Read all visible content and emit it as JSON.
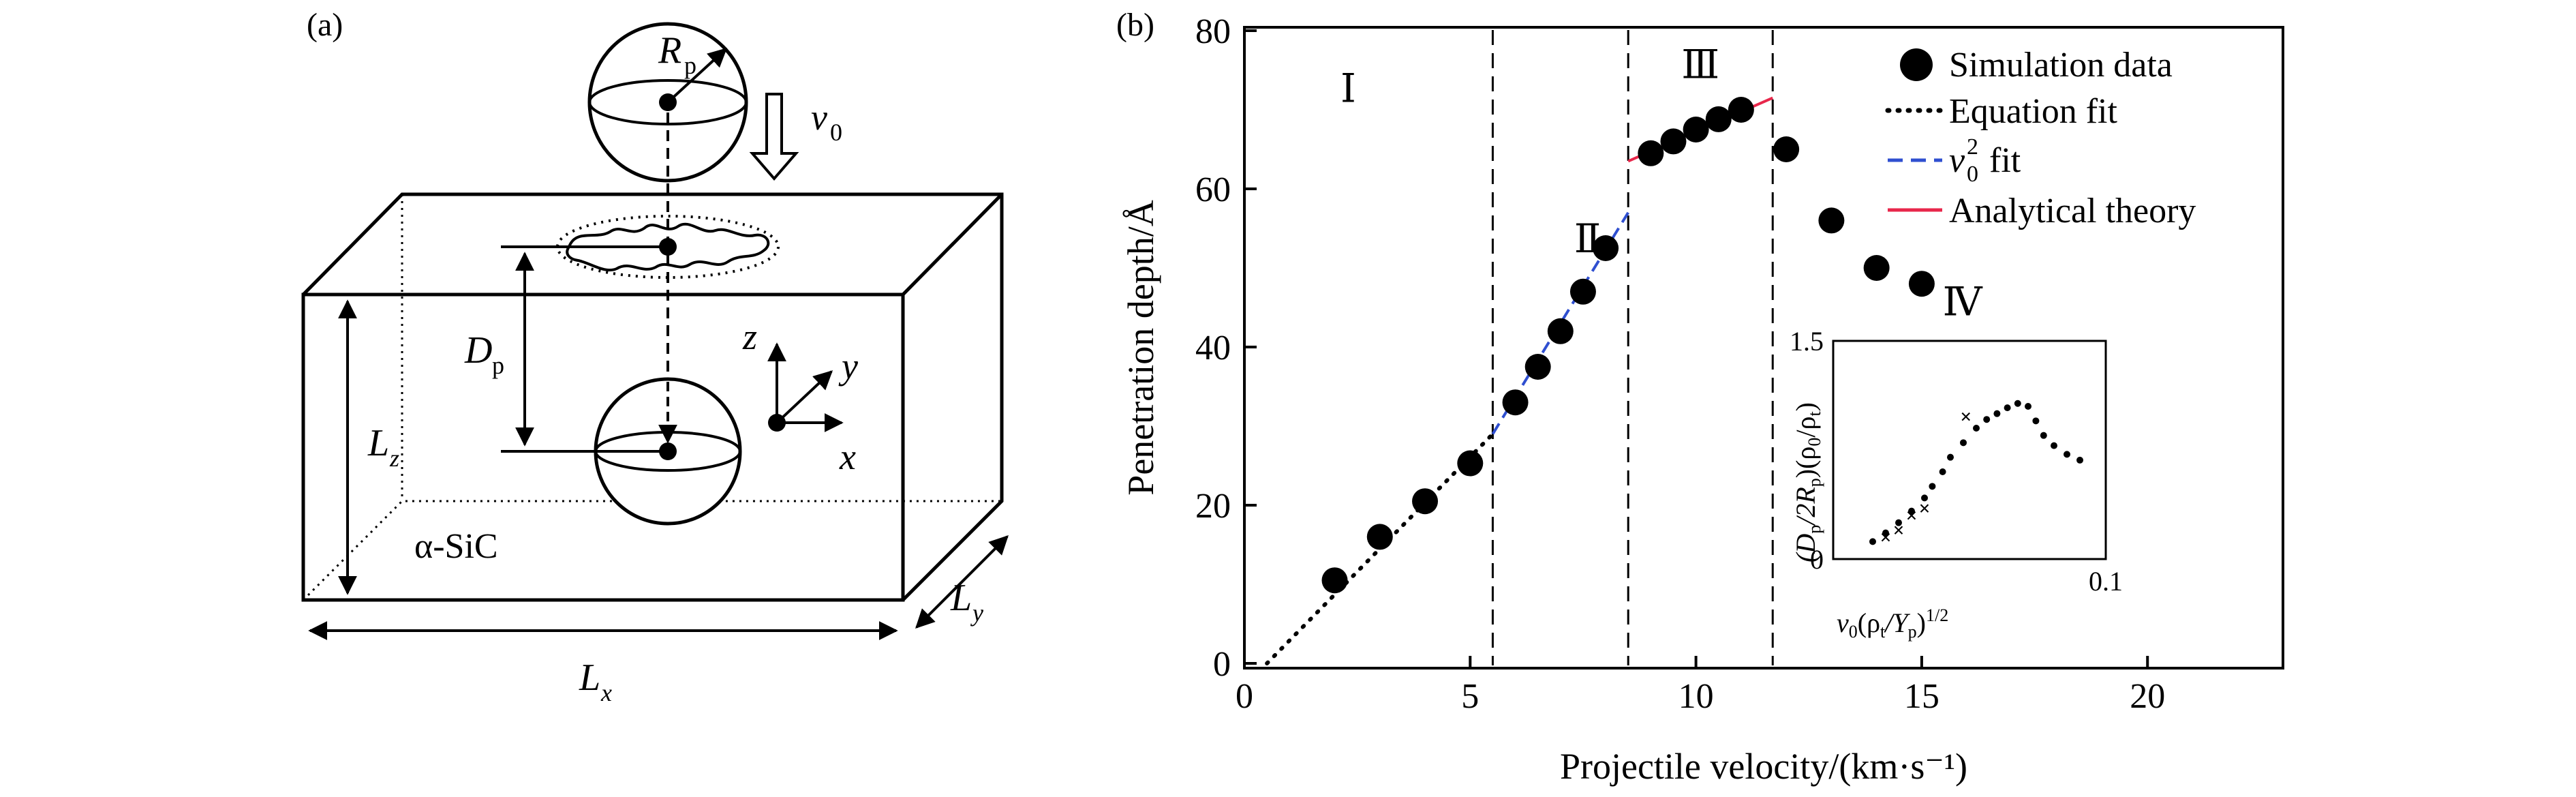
{
  "panel_a": {
    "label": "(a)",
    "rp_label": "R",
    "rp_sub": "p",
    "v0_label": "v",
    "v0_sub": "0",
    "dp_label": "D",
    "dp_sub": "p",
    "lz_label": "L",
    "lz_sub": "z",
    "lx_label": "L",
    "lx_sub": "x",
    "ly_label": "L",
    "ly_sub": "y",
    "axis_z": "z",
    "axis_y": "y",
    "axis_x": "x",
    "material": "α-SiC"
  },
  "chart_data": [
    {
      "type": "scatter",
      "panel_label": "(b)",
      "xlabel": "Projectile velocity/(km·s⁻¹)",
      "ylabel": "Penetration depth/Å",
      "xlim": [
        0,
        23
      ],
      "ylim": [
        0,
        80
      ],
      "xticks": [
        "0",
        "5",
        "10",
        "15",
        "20"
      ],
      "yticks": [
        "0",
        "20",
        "40",
        "60",
        "80"
      ],
      "regions": [
        "Ⅰ",
        "Ⅱ",
        "Ⅲ",
        "Ⅳ"
      ],
      "region_boundaries": [
        5.5,
        8.5,
        11.7
      ],
      "series": [
        {
          "name": "Simulation data",
          "x": [
            2,
            3,
            4,
            5,
            6,
            6.5,
            7,
            7.5,
            8,
            9,
            9.5,
            10,
            10.5,
            11,
            12,
            13,
            14,
            15
          ],
          "y": [
            10.5,
            16,
            20.5,
            25.3,
            33,
            37.5,
            42,
            47,
            52.5,
            64.5,
            66,
            67.5,
            68.8,
            70,
            65,
            56,
            50,
            48
          ]
        },
        {
          "name": "Equation fit",
          "x": [
            0.5,
            5.5
          ],
          "y": [
            0,
            29
          ]
        },
        {
          "name": "v_0^2 fit",
          "x": [
            5.5,
            8.5
          ],
          "y": [
            29,
            57
          ]
        },
        {
          "name": "Analytical theory",
          "x": [
            8.5,
            11.7
          ],
          "y": [
            63.5,
            71.5
          ]
        }
      ],
      "legend": [
        {
          "label": "Simulation data"
        },
        {
          "label": "Equation fit"
        },
        {
          "label": "v",
          "sub": "0",
          "sup": "2",
          "suffix": " fit"
        },
        {
          "label": "Analytical theory"
        }
      ],
      "colors": {
        "analytical": "#e8274b",
        "v2fit": "#2f4fd0",
        "data": "#000000"
      }
    },
    {
      "type": "scatter",
      "name": "inset",
      "xlabel_parts": [
        "v",
        "0",
        "(ρ",
        "t",
        "/Y",
        "p",
        ")",
        "1/2"
      ],
      "ylabel_parts": [
        "(D",
        "p",
        "/2R",
        "p",
        ")(ρ",
        "0",
        "/ρ",
        "t",
        ")"
      ],
      "xlim": [
        0,
        0.1
      ],
      "ylim": [
        0,
        1.5
      ],
      "xticks": [
        "0.1"
      ],
      "yticks": [
        "0",
        "1.5"
      ],
      "series": [
        {
          "name": "simulation",
          "x": [
            0.01,
            0.015,
            0.02,
            0.025,
            0.03,
            0.033,
            0.037,
            0.04,
            0.045,
            0.05,
            0.054,
            0.058,
            0.062,
            0.066,
            0.07,
            0.073,
            0.076,
            0.08,
            0.085,
            0.09
          ],
          "y": [
            0.12,
            0.18,
            0.25,
            0.33,
            0.42,
            0.5,
            0.6,
            0.7,
            0.8,
            0.9,
            0.96,
            1.0,
            1.04,
            1.07,
            1.05,
            0.95,
            0.85,
            0.78,
            0.72,
            0.68
          ]
        },
        {
          "name": "analytical",
          "x": [
            0.015,
            0.02,
            0.025,
            0.03,
            0.046
          ],
          "y": [
            0.15,
            0.2,
            0.3,
            0.35,
            0.98
          ]
        }
      ]
    }
  ]
}
